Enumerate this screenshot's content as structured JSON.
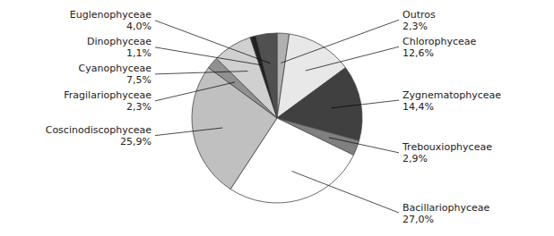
{
  "chart_data": {
    "type": "pie",
    "categories": [
      "Outros",
      "Chlorophyceae",
      "Zygnematophyceae",
      "Trebouxiophyceae",
      "Bacillariophyceae",
      "Coscinodiscophyceae",
      "Fragilariophyceae",
      "Cyanophyceae",
      "Dinophyceae",
      "Euglenophyceae"
    ],
    "values": [
      2.3,
      12.6,
      14.4,
      2.9,
      27.0,
      25.9,
      2.3,
      7.5,
      1.1,
      4.0
    ],
    "value_labels": [
      "2,3%",
      "12,6%",
      "14,4%",
      "2,9%",
      "27,0%",
      "25,9%",
      "2,3%",
      "7,5%",
      "1,1%",
      "4,0%"
    ],
    "colors": [
      "#b0b0b0",
      "#e8e8e8",
      "#404040",
      "#808080",
      "#ffffff",
      "#c0c0c0",
      "#909090",
      "#d0d0d0",
      "#222222",
      "#505050"
    ],
    "data_labels": true
  }
}
